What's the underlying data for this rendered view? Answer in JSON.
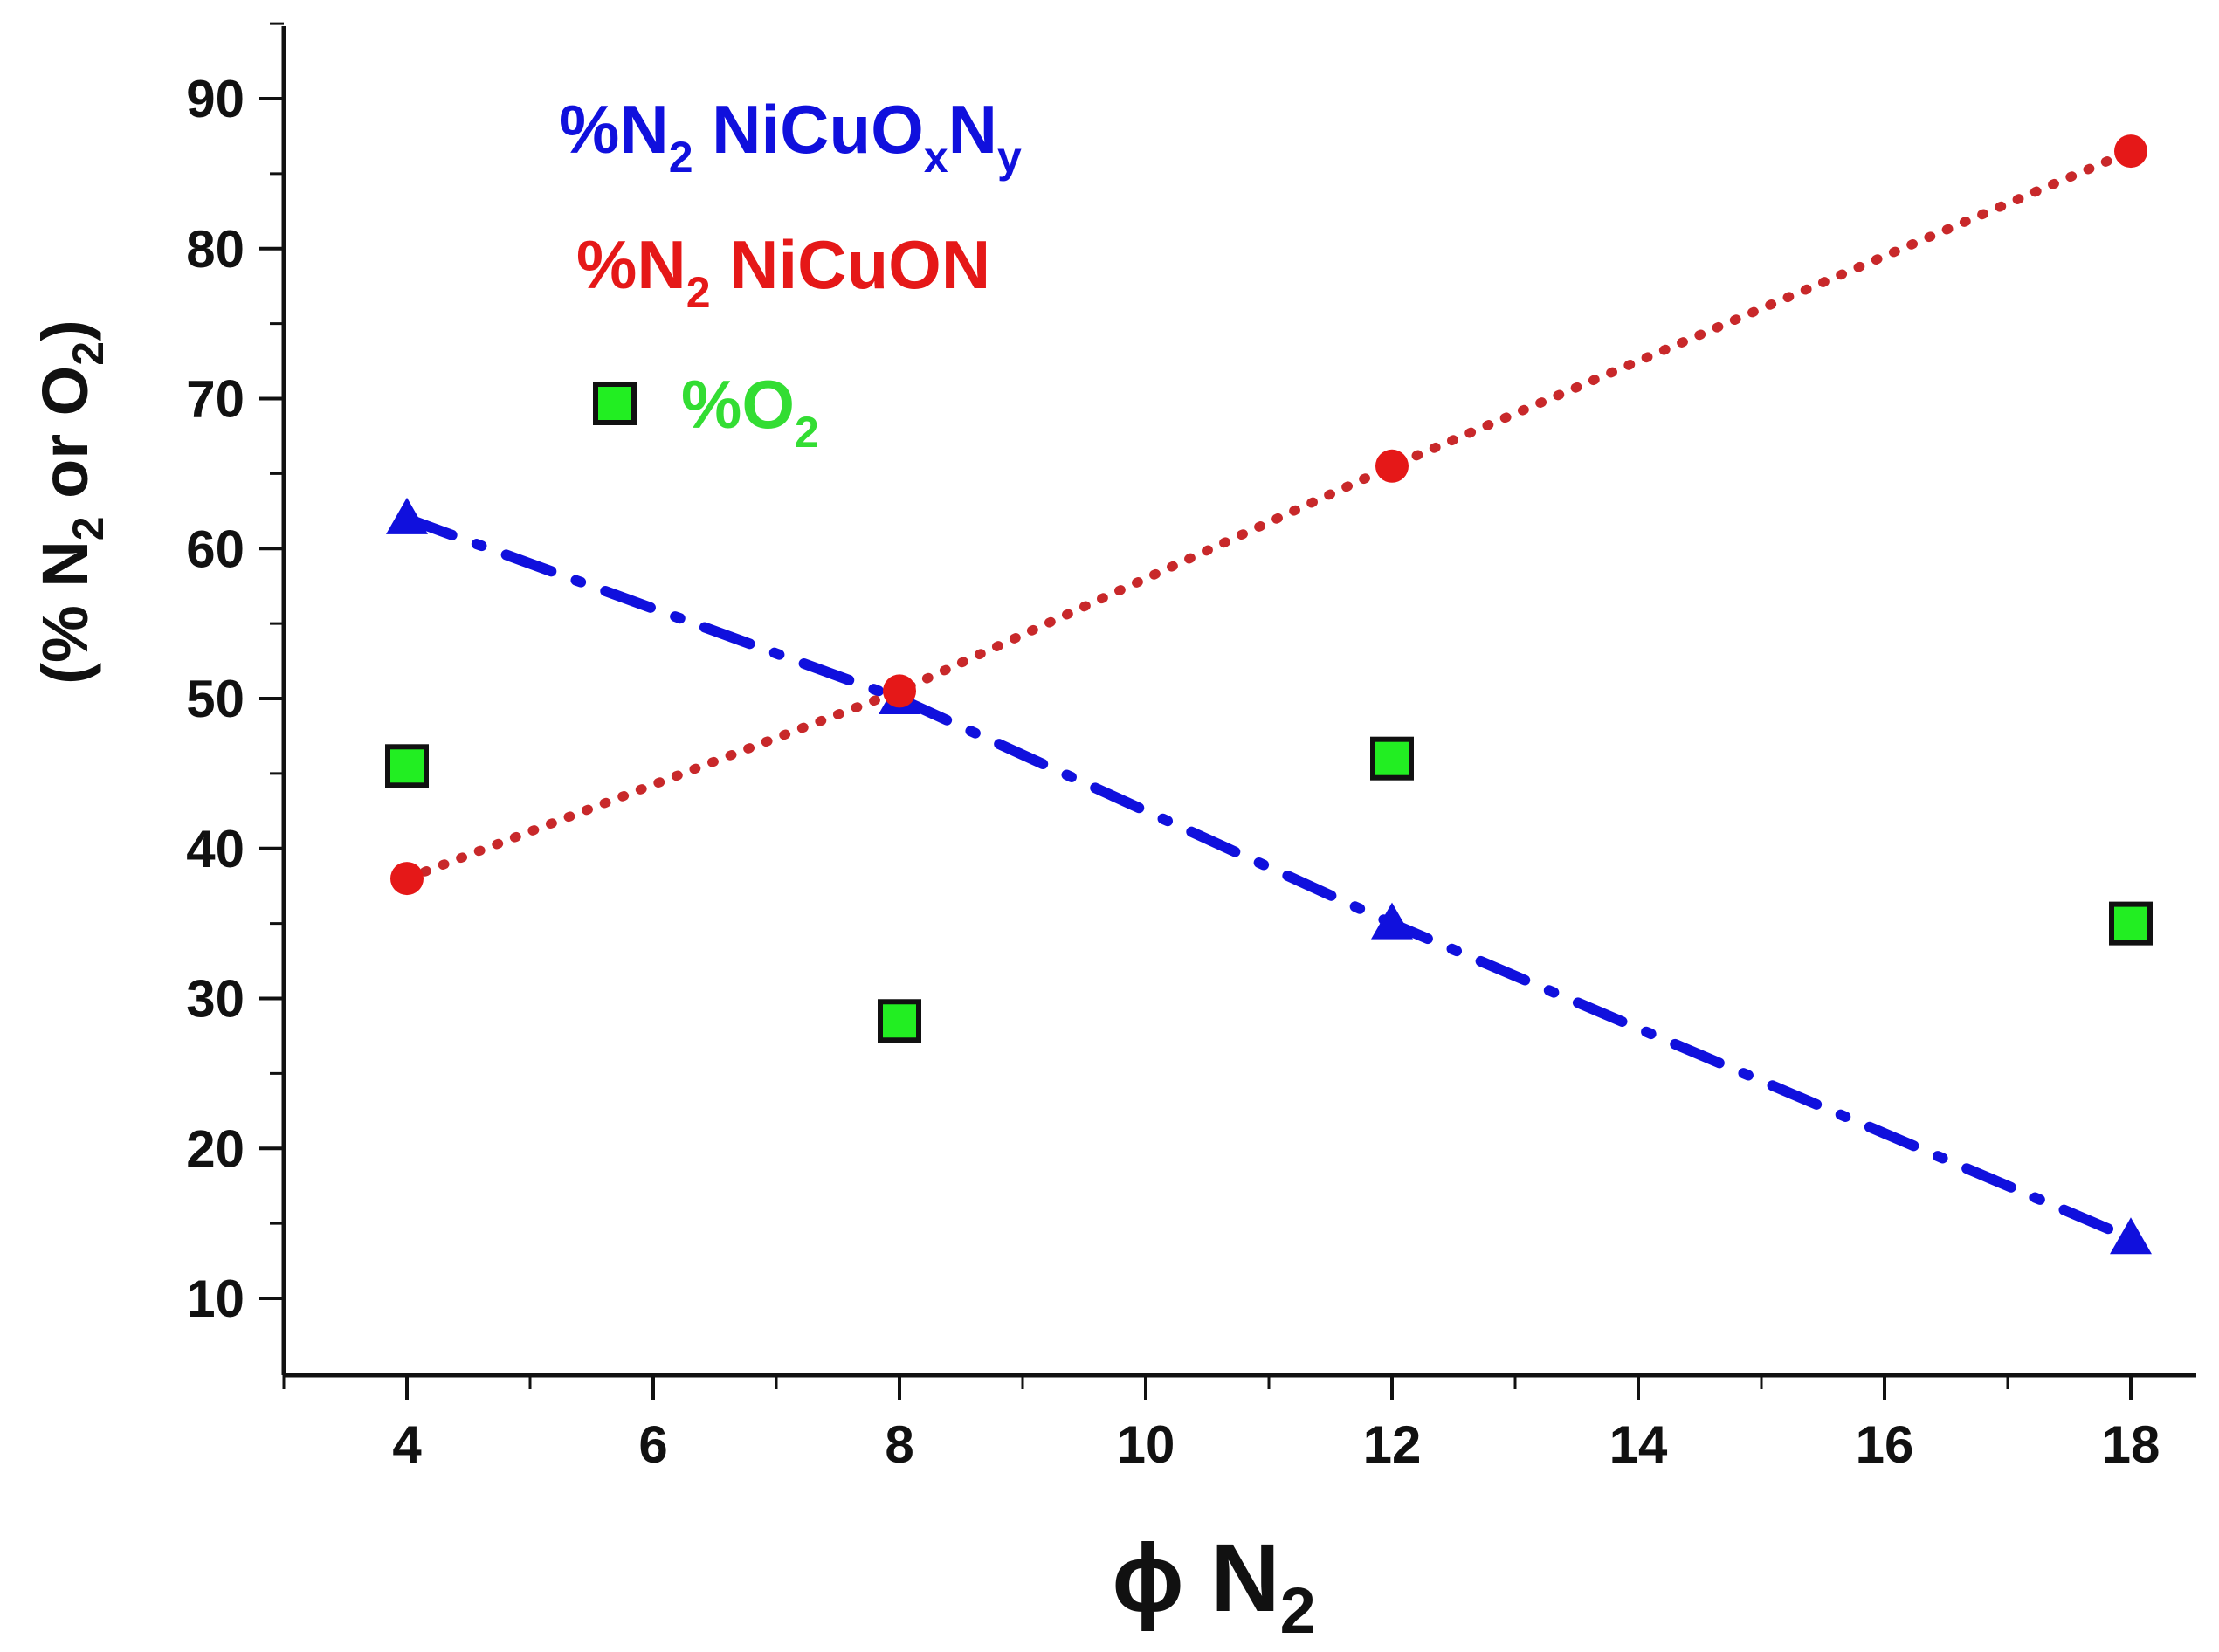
{
  "chart_data": {
    "type": "scatter",
    "title": "",
    "xlabel": "ϕ N₂",
    "xlabel_parts": {
      "main": "ϕ N",
      "sub": "2"
    },
    "ylabel": "(% N₂ or O₂)",
    "ylabel_parts": {
      "p1": "(% N",
      "s1": "2",
      "p2": " or O",
      "s2": "2",
      "p3": ")"
    },
    "xlim": [
      3,
      18.5
    ],
    "ylim": [
      5,
      95
    ],
    "xticks": [
      4,
      6,
      8,
      10,
      12,
      14,
      16,
      18
    ],
    "yticks": [
      10,
      20,
      30,
      40,
      50,
      60,
      70,
      80,
      90
    ],
    "grid": false,
    "legend_position": "top-left",
    "series": [
      {
        "name": "%N₂ NiCuOₓNᵧ",
        "legend_parts": {
          "a": "%N",
          "a_sub": "2",
          "b": " NiCuO",
          "b_sub": "x",
          "c": "N",
          "c_sub": "y"
        },
        "color": "#1010dd",
        "marker": "triangle",
        "line": "dash-dot",
        "x": [
          4,
          8,
          12,
          18
        ],
        "y": [
          62,
          50,
          35,
          14
        ]
      },
      {
        "name": "%N₂ NiCuON",
        "legend_parts": {
          "a": "%N",
          "a_sub": "2",
          "b": " NiCuON"
        },
        "color": "#e51818",
        "marker": "circle",
        "line": "dotted",
        "x": [
          4,
          8,
          12,
          18
        ],
        "y": [
          38,
          50.5,
          65.5,
          86.5
        ]
      },
      {
        "name": "%O₂",
        "legend_parts": {
          "a": "%O",
          "a_sub": "2"
        },
        "color": "#22ee22",
        "marker": "square",
        "line": "none",
        "x": [
          4,
          8,
          12,
          18
        ],
        "y": [
          45.5,
          28.5,
          46,
          35
        ]
      }
    ]
  }
}
